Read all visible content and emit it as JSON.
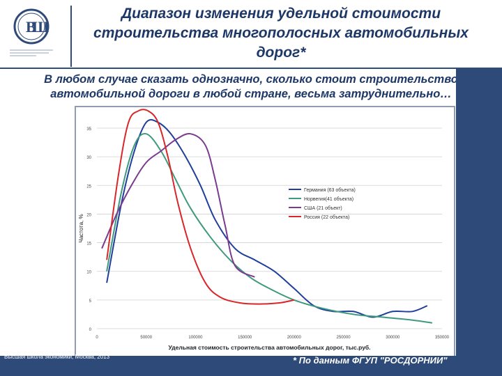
{
  "slide": {
    "title": "Диапазон изменения удельной стоимости строительства многополосных автомобильных дорог*",
    "subtitle": "В любом случае сказать однозначно, сколько стоит строительство автомобильной дороги в любой стране, весьма затруднительно…",
    "logo_text": "НАЦИОНАЛЬНЫЙ ИССЛЕДОВАТЕЛЬСКИЙ УНИВЕРСИТЕТ",
    "footer_left": "Высшая школа экономики, Москва, 2013",
    "footer_right": "* По данным ФГУП \"РОСДОРНИИ\""
  },
  "colors": {
    "brand_blue": "#2d4a78",
    "title_blue": "#1d3767",
    "germany": "#1f3f9a",
    "norway": "#3e9a7e",
    "usa": "#7a3b8f",
    "russia": "#d9262a"
  },
  "chart_data": {
    "type": "line",
    "xlabel": "Удельная стоимость строительства автомобильных дорог, тыс.руб.",
    "ylabel": "Частота, %",
    "xlim": [
      0,
      350000
    ],
    "ylim": [
      0,
      35
    ],
    "x_ticks": [
      0,
      50000,
      100000,
      150000,
      200000,
      250000,
      300000,
      350000
    ],
    "x_tick_labels": [
      "0",
      "50000",
      "100000",
      "150000",
      "200000",
      "250000",
      "300000",
      "350000"
    ],
    "y_ticks": [
      0,
      5,
      10,
      15,
      20,
      25,
      30,
      35
    ],
    "y_tick_labels": [
      "0",
      "5",
      "10",
      "15",
      "20",
      "25",
      "30",
      "35"
    ],
    "grid": "horizontal",
    "legend_position": "right",
    "series": [
      {
        "name": "Германия (63 объекта)",
        "color": "#1f3f9a",
        "x": [
          10000,
          25000,
          38000,
          50000,
          62000,
          75000,
          90000,
          105000,
          120000,
          140000,
          160000,
          180000,
          200000,
          220000,
          240000,
          260000,
          280000,
          300000,
          320000,
          335000
        ],
        "y": [
          8,
          22,
          31,
          36,
          36,
          34,
          30,
          25,
          19,
          14,
          12,
          10,
          7,
          4,
          3,
          3,
          2,
          3,
          3,
          4
        ]
      },
      {
        "name": "Норвегия(41 объекта)",
        "color": "#3e9a7e",
        "x": [
          10000,
          25000,
          38000,
          50000,
          65000,
          80000,
          95000,
          115000,
          135000,
          155000,
          175000,
          200000,
          230000,
          260000,
          290000,
          320000,
          340000
        ],
        "y": [
          10,
          24,
          32,
          34,
          31,
          26,
          21,
          16,
          12,
          9,
          7,
          5,
          3.5,
          2.5,
          2,
          1.5,
          1
        ]
      },
      {
        "name": "США (21 объект)",
        "color": "#7a3b8f",
        "x": [
          5000,
          20000,
          35000,
          50000,
          65000,
          80000,
          95000,
          110000,
          120000,
          130000,
          140000,
          160000
        ],
        "y": [
          14,
          20,
          25,
          29,
          31,
          33,
          34,
          32,
          26,
          18,
          11,
          9
        ]
      },
      {
        "name": "Россия (22 объекта)",
        "color": "#d9262a",
        "x": [
          10000,
          22000,
          32000,
          42000,
          52000,
          62000,
          72000,
          82000,
          95000,
          110000,
          125000,
          145000,
          165000,
          185000,
          200000
        ],
        "y": [
          12,
          27,
          36,
          38,
          38,
          36,
          30,
          22,
          14,
          8,
          5.5,
          4.5,
          4.3,
          4.5,
          5
        ]
      }
    ]
  }
}
